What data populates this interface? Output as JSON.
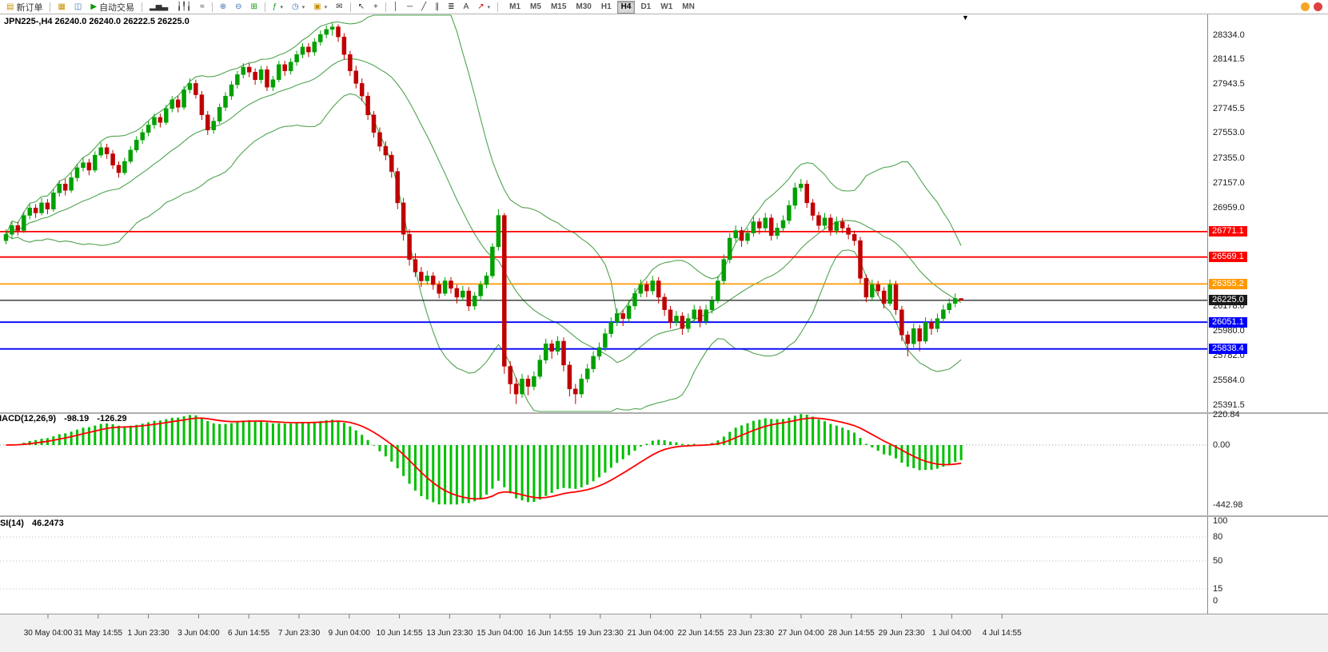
{
  "ui": {
    "toolbar": {
      "new_order": "新订单",
      "autotrading": "自动交易",
      "timeframes": [
        "M1",
        "M5",
        "M15",
        "M30",
        "H1",
        "H4",
        "D1",
        "W1",
        "MN"
      ],
      "active_timeframe": "H4"
    },
    "icons": {
      "new_order": "▤",
      "market_watch": "▦",
      "navigator": "◫",
      "autotrading_play": "▶",
      "bar_chart": "▂▅▃",
      "candlestick_chart": "╽╿╽",
      "line_chart": "≈",
      "zoom_in": "⊕",
      "zoom_out": "⊖",
      "tile_windows": "⊞",
      "indicators": "ƒ",
      "periods": "◷",
      "templates": "▣",
      "mail": "✉",
      "cursor": "↖",
      "crosshair": "+",
      "vertical_line": "│",
      "horizontal_line": "─",
      "trendline": "╱",
      "channel": "∥",
      "fibonacci": "≣",
      "text_tool": "A",
      "arrows_tool": "↗",
      "caret": "▾",
      "scroll_end": "▼"
    },
    "chart_title": "JPN225-,H4 26240.0 26240.0 26222.5 26225.0"
  },
  "chart_data": {
    "type": "candlestick",
    "symbol": "JPN225-",
    "timeframe": "H4",
    "current_bar": {
      "open": 26240.0,
      "high": 26240.0,
      "low": 26222.5,
      "close": 26225.0
    },
    "colors": {
      "bull": "#00a000",
      "bear": "#c00000",
      "background": "#ffffff"
    },
    "price_axis_labels": [
      28334.0,
      28141.5,
      27943.5,
      27745.5,
      27553.0,
      27355.0,
      27157.0,
      26959.0,
      26178.0,
      25980.0,
      25782.0,
      25584.0,
      25391.5
    ],
    "horizontal_levels": [
      {
        "price": 26771.1,
        "color": "#ff0000",
        "width": 1.8
      },
      {
        "price": 26569.1,
        "color": "#ff0000",
        "width": 1.8
      },
      {
        "price": 26355.2,
        "color": "#ff9900",
        "width": 1.8
      },
      {
        "price": 26225.0,
        "color": "#1a1a1a",
        "width": 1.2
      },
      {
        "price": 26051.1,
        "color": "#0000ff",
        "width": 1.8
      },
      {
        "price": 25838.4,
        "color": "#0000ff",
        "width": 1.8
      }
    ],
    "time_axis_labels": [
      "30 May 04:00",
      "31 May 14:55",
      "1 Jun 23:30",
      "3 Jun 04:00",
      "6 Jun 14:55",
      "7 Jun 23:30",
      "9 Jun 04:00",
      "10 Jun 14:55",
      "13 Jun 23:30",
      "15 Jun 04:00",
      "16 Jun 14:55",
      "19 Jun 23:30",
      "21 Jun 04:00",
      "22 Jun 14:55",
      "23 Jun 23:30",
      "27 Jun 04:00",
      "28 Jun 14:55",
      "29 Jun 23:30",
      "1 Jul 04:00",
      "4 Jul 14:55"
    ],
    "indicators": {
      "bollinger": {
        "name": "Bollinger Bands",
        "period": 20,
        "deviation": 2,
        "color": "#4fa34f"
      },
      "macd": {
        "name": "MACD(12,26,9)",
        "value_main": "-98.19",
        "value_signal": "-126.29",
        "hist_color": "#00c000",
        "signal_color": "#ff0000",
        "scale": [
          {
            "text": "220.84",
            "value": 220.84
          },
          {
            "text": "0.00",
            "value": 0
          },
          {
            "text": "-442.98",
            "value": -442.98
          }
        ]
      },
      "rsi": {
        "name": "RSI(14)",
        "value": "46.2473",
        "color": "#1e90ff",
        "scale": [
          100,
          80,
          50,
          15,
          0
        ],
        "levels": [
          80,
          50,
          15
        ]
      }
    },
    "candles": [
      [
        26700,
        26790,
        26670,
        26750
      ],
      [
        26750,
        26850,
        26720,
        26820
      ],
      [
        26820,
        26850,
        26740,
        26780
      ],
      [
        26780,
        26930,
        26760,
        26900
      ],
      [
        26900,
        26990,
        26870,
        26960
      ],
      [
        26960,
        26990,
        26880,
        26920
      ],
      [
        26920,
        27040,
        26900,
        27000
      ],
      [
        27000,
        27030,
        26910,
        26950
      ],
      [
        26950,
        27110,
        26930,
        27080
      ],
      [
        27080,
        27180,
        27050,
        27150
      ],
      [
        27150,
        27190,
        27060,
        27100
      ],
      [
        27100,
        27240,
        27080,
        27200
      ],
      [
        27200,
        27310,
        27170,
        27280
      ],
      [
        27280,
        27360,
        27250,
        27320
      ],
      [
        27320,
        27350,
        27220,
        27260
      ],
      [
        27260,
        27410,
        27240,
        27380
      ],
      [
        27380,
        27480,
        27360,
        27440
      ],
      [
        27440,
        27470,
        27350,
        27390
      ],
      [
        27390,
        27420,
        27270,
        27300
      ],
      [
        27300,
        27330,
        27200,
        27240
      ],
      [
        27240,
        27360,
        27220,
        27330
      ],
      [
        27330,
        27450,
        27310,
        27420
      ],
      [
        27420,
        27530,
        27400,
        27500
      ],
      [
        27500,
        27590,
        27470,
        27560
      ],
      [
        27560,
        27650,
        27530,
        27620
      ],
      [
        27620,
        27710,
        27590,
        27680
      ],
      [
        27680,
        27710,
        27600,
        27640
      ],
      [
        27640,
        27780,
        27620,
        27750
      ],
      [
        27750,
        27850,
        27720,
        27820
      ],
      [
        27820,
        27850,
        27720,
        27760
      ],
      [
        27760,
        27930,
        27740,
        27900
      ],
      [
        27900,
        27990,
        27870,
        27950
      ],
      [
        27950,
        27980,
        27830,
        27860
      ],
      [
        27860,
        27890,
        27660,
        27700
      ],
      [
        27700,
        27730,
        27540,
        27580
      ],
      [
        27580,
        27680,
        27550,
        27650
      ],
      [
        27650,
        27790,
        27630,
        27760
      ],
      [
        27760,
        27880,
        27730,
        27850
      ],
      [
        27850,
        27970,
        27820,
        27940
      ],
      [
        27940,
        28050,
        27910,
        28020
      ],
      [
        28020,
        28110,
        27990,
        28080
      ],
      [
        28080,
        28110,
        28000,
        28040
      ],
      [
        28040,
        28070,
        27940,
        27980
      ],
      [
        27980,
        28090,
        27950,
        28060
      ],
      [
        28060,
        28090,
        27890,
        27920
      ],
      [
        27920,
        28010,
        27890,
        27980
      ],
      [
        27980,
        28130,
        27960,
        28100
      ],
      [
        28100,
        28130,
        28010,
        28050
      ],
      [
        28050,
        28150,
        28020,
        28120
      ],
      [
        28120,
        28210,
        28090,
        28180
      ],
      [
        28180,
        28270,
        28150,
        28240
      ],
      [
        28240,
        28270,
        28160,
        28200
      ],
      [
        28200,
        28310,
        28170,
        28280
      ],
      [
        28280,
        28370,
        28250,
        28340
      ],
      [
        28340,
        28410,
        28310,
        28380
      ],
      [
        28380,
        28430,
        28330,
        28400
      ],
      [
        28400,
        28420,
        28280,
        28320
      ],
      [
        28320,
        28350,
        28140,
        28180
      ],
      [
        28180,
        28210,
        28010,
        28050
      ],
      [
        28050,
        28090,
        27910,
        27950
      ],
      [
        27950,
        27990,
        27810,
        27850
      ],
      [
        27850,
        27880,
        27660,
        27700
      ],
      [
        27700,
        27730,
        27520,
        27560
      ],
      [
        27560,
        27600,
        27410,
        27450
      ],
      [
        27450,
        27490,
        27340,
        27380
      ],
      [
        27380,
        27410,
        27200,
        27250
      ],
      [
        27250,
        27280,
        26950,
        27000
      ],
      [
        27000,
        27040,
        26700,
        26750
      ],
      [
        26750,
        26790,
        26500,
        26550
      ],
      [
        26550,
        26600,
        26410,
        26450
      ],
      [
        26450,
        26490,
        26330,
        26380
      ],
      [
        26380,
        26460,
        26350,
        26420
      ],
      [
        26420,
        26450,
        26310,
        26350
      ],
      [
        26350,
        26380,
        26240,
        26280
      ],
      [
        26280,
        26410,
        26260,
        26380
      ],
      [
        26380,
        26410,
        26280,
        26320
      ],
      [
        26320,
        26350,
        26200,
        26250
      ],
      [
        26250,
        26340,
        26220,
        26300
      ],
      [
        26300,
        26330,
        26140,
        26180
      ],
      [
        26180,
        26290,
        26150,
        26260
      ],
      [
        26260,
        26380,
        26230,
        26350
      ],
      [
        26350,
        26450,
        26320,
        26420
      ],
      [
        26420,
        26680,
        26400,
        26650
      ],
      [
        26650,
        26950,
        26620,
        26900
      ],
      [
        26900,
        26920,
        25640,
        25700
      ],
      [
        25700,
        25740,
        25480,
        25560
      ],
      [
        25560,
        25610,
        25400,
        25480
      ],
      [
        25480,
        25640,
        25450,
        25600
      ],
      [
        25600,
        25630,
        25470,
        25540
      ],
      [
        25540,
        25660,
        25510,
        25620
      ],
      [
        25620,
        25790,
        25600,
        25750
      ],
      [
        25750,
        25920,
        25720,
        25880
      ],
      [
        25880,
        25910,
        25760,
        25820
      ],
      [
        25820,
        25940,
        25790,
        25900
      ],
      [
        25900,
        25930,
        25660,
        25710
      ],
      [
        25710,
        25740,
        25460,
        25520
      ],
      [
        25520,
        25560,
        25400,
        25480
      ],
      [
        25480,
        25640,
        25450,
        25600
      ],
      [
        25600,
        25720,
        25570,
        25680
      ],
      [
        25680,
        25820,
        25650,
        25780
      ],
      [
        25780,
        25890,
        25750,
        25850
      ],
      [
        25850,
        26000,
        25820,
        25960
      ],
      [
        25960,
        26090,
        25930,
        26050
      ],
      [
        26050,
        26160,
        26020,
        26120
      ],
      [
        26120,
        26150,
        26020,
        26080
      ],
      [
        26080,
        26220,
        26050,
        26180
      ],
      [
        26180,
        26320,
        26150,
        26280
      ],
      [
        26280,
        26390,
        26250,
        26350
      ],
      [
        26350,
        26380,
        26250,
        26300
      ],
      [
        26300,
        26420,
        26270,
        26380
      ],
      [
        26380,
        26410,
        26200,
        26250
      ],
      [
        26250,
        26280,
        26100,
        26150
      ],
      [
        26150,
        26180,
        26000,
        26050
      ],
      [
        26050,
        26140,
        26020,
        26100
      ],
      [
        26100,
        26130,
        25950,
        26000
      ],
      [
        26000,
        26120,
        25970,
        26080
      ],
      [
        26080,
        26190,
        26050,
        26150
      ],
      [
        26150,
        26180,
        26010,
        26060
      ],
      [
        26060,
        26190,
        26030,
        26150
      ],
      [
        26150,
        26260,
        26120,
        26220
      ],
      [
        26220,
        26420,
        26200,
        26380
      ],
      [
        26380,
        26590,
        26350,
        26550
      ],
      [
        26550,
        26760,
        26520,
        26720
      ],
      [
        26720,
        26820,
        26690,
        26780
      ],
      [
        26780,
        26810,
        26650,
        26700
      ],
      [
        26700,
        26800,
        26670,
        26760
      ],
      [
        26760,
        26890,
        26730,
        26850
      ],
      [
        26850,
        26880,
        26750,
        26800
      ],
      [
        26800,
        26920,
        26770,
        26880
      ],
      [
        26880,
        26910,
        26700,
        26740
      ],
      [
        26740,
        26840,
        26710,
        26800
      ],
      [
        26800,
        26900,
        26770,
        26860
      ],
      [
        26860,
        27020,
        26830,
        26980
      ],
      [
        26980,
        27160,
        26950,
        27120
      ],
      [
        27120,
        27190,
        27090,
        27150
      ],
      [
        27150,
        27180,
        26960,
        27000
      ],
      [
        27000,
        27030,
        26860,
        26900
      ],
      [
        26900,
        26930,
        26780,
        26820
      ],
      [
        26820,
        26920,
        26790,
        26880
      ],
      [
        26880,
        26910,
        26740,
        26780
      ],
      [
        26780,
        26890,
        26750,
        26850
      ],
      [
        26850,
        26880,
        26760,
        26800
      ],
      [
        26800,
        26830,
        26710,
        26750
      ],
      [
        26750,
        26780,
        26660,
        26700
      ],
      [
        26700,
        26730,
        26360,
        26400
      ],
      [
        26400,
        26430,
        26210,
        26250
      ],
      [
        26250,
        26390,
        26220,
        26350
      ],
      [
        26350,
        26380,
        26260,
        26300
      ],
      [
        26300,
        26330,
        26160,
        26200
      ],
      [
        26200,
        26390,
        26180,
        26350
      ],
      [
        26350,
        26380,
        26110,
        26150
      ],
      [
        26150,
        26180,
        25900,
        25950
      ],
      [
        25950,
        25980,
        25780,
        25880
      ],
      [
        25880,
        26040,
        25850,
        26000
      ],
      [
        26000,
        26030,
        25820,
        25900
      ],
      [
        25900,
        26090,
        25880,
        26050
      ],
      [
        26050,
        26080,
        25950,
        26000
      ],
      [
        26000,
        26120,
        25970,
        26080
      ],
      [
        26080,
        26190,
        26050,
        26150
      ],
      [
        26150,
        26240,
        26120,
        26200
      ],
      [
        26200,
        26280,
        26170,
        26240
      ],
      [
        26240,
        26240,
        26222.5,
        26225
      ]
    ]
  }
}
